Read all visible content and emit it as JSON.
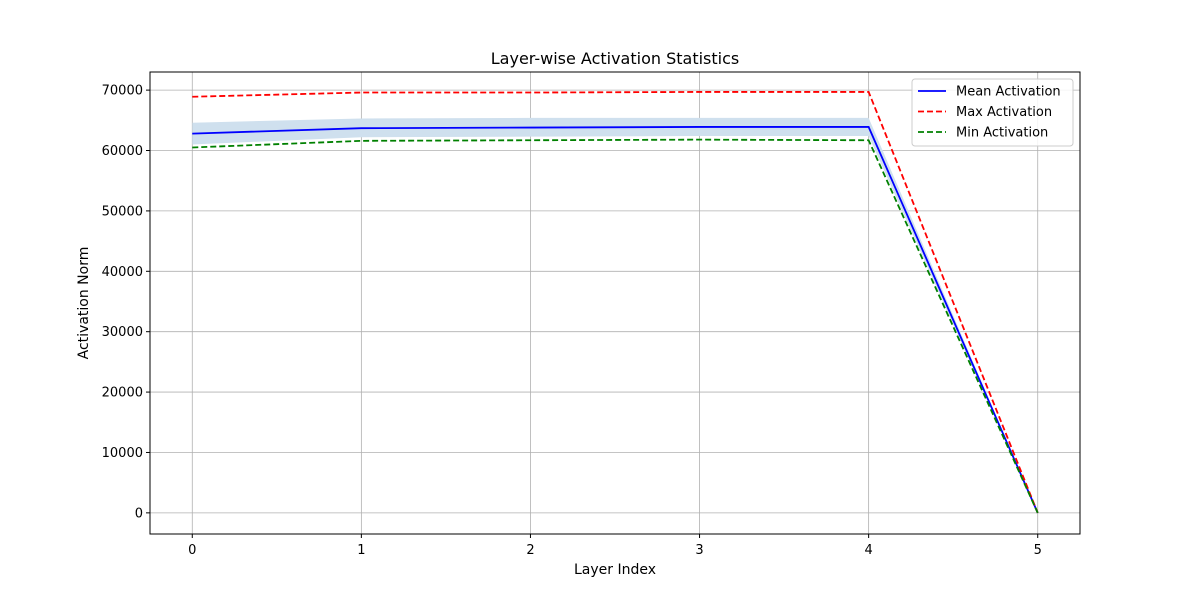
{
  "chart_data": {
    "type": "line",
    "title": "Layer-wise Activation Statistics",
    "xlabel": "Layer Index",
    "ylabel": "Activation Norm",
    "x": [
      0,
      1,
      2,
      3,
      4,
      5
    ],
    "xlim": [
      -0.25,
      5.25
    ],
    "ylim": [
      -3500,
      73000
    ],
    "xticks": [
      0,
      1,
      2,
      3,
      4,
      5
    ],
    "yticks": [
      0,
      10000,
      20000,
      30000,
      40000,
      50000,
      60000,
      70000
    ],
    "grid": true,
    "legend_position": "top-right",
    "band": {
      "color": "#cfe0ee",
      "upper": [
        64600,
        65300,
        65400,
        65400,
        65400,
        0
      ],
      "lower": [
        61000,
        62200,
        62300,
        62400,
        62400,
        0
      ]
    },
    "series": [
      {
        "name": "Mean Activation",
        "color": "#0000ff",
        "style": "solid",
        "values": [
          62800,
          63700,
          63800,
          63900,
          63900,
          0
        ]
      },
      {
        "name": "Max Activation",
        "color": "#ff0000",
        "style": "dashed",
        "values": [
          68900,
          69600,
          69600,
          69700,
          69700,
          0
        ]
      },
      {
        "name": "Min Activation",
        "color": "#008000",
        "style": "dashed",
        "values": [
          60500,
          61600,
          61700,
          61800,
          61700,
          0
        ]
      }
    ]
  }
}
